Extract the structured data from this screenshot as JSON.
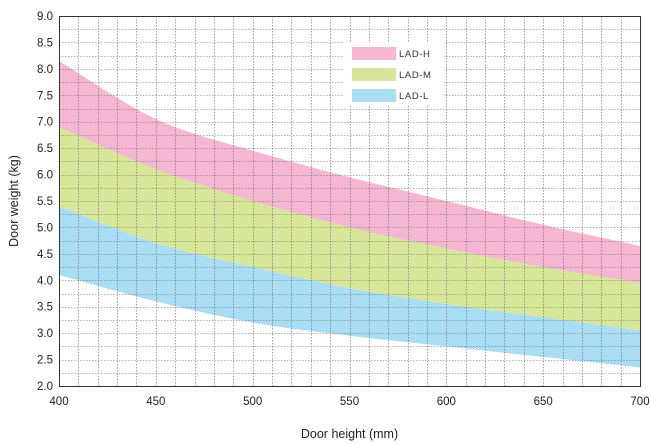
{
  "chart_data": {
    "type": "area",
    "title": "",
    "xlabel": "Door height (mm)",
    "ylabel": "Door weight (kg)",
    "xlim": [
      400,
      700
    ],
    "ylim": [
      2.0,
      9.0
    ],
    "x_ticks": [
      "400",
      "450",
      "500",
      "550",
      "600",
      "650",
      "700"
    ],
    "y_ticks": [
      "2.0",
      "2.5",
      "3.0",
      "3.5",
      "4.0",
      "4.5",
      "5.0",
      "5.5",
      "6.0",
      "6.5",
      "7.0",
      "7.5",
      "8.0",
      "8.5",
      "9.0"
    ],
    "grid": true,
    "legend_position": "top-center",
    "x": [
      400,
      450,
      500,
      550,
      600,
      650,
      700
    ],
    "series": [
      {
        "name": "LAD-H",
        "color": "#f4b6d1",
        "lower": [
          6.9,
          6.1,
          5.5,
          5.0,
          4.6,
          4.25,
          3.95
        ],
        "upper": [
          8.15,
          7.05,
          6.45,
          5.95,
          5.5,
          5.05,
          4.65
        ]
      },
      {
        "name": "LAD-M",
        "color": "#d8e69a",
        "lower": [
          5.4,
          4.7,
          4.25,
          3.85,
          3.55,
          3.3,
          3.05
        ],
        "upper": [
          6.9,
          6.1,
          5.5,
          5.0,
          4.6,
          4.25,
          3.95
        ]
      },
      {
        "name": "LAD-L",
        "color": "#a9ddf3",
        "lower": [
          4.1,
          3.6,
          3.2,
          2.95,
          2.75,
          2.55,
          2.35
        ],
        "upper": [
          5.4,
          4.7,
          4.25,
          3.85,
          3.55,
          3.3,
          3.05
        ]
      }
    ]
  }
}
